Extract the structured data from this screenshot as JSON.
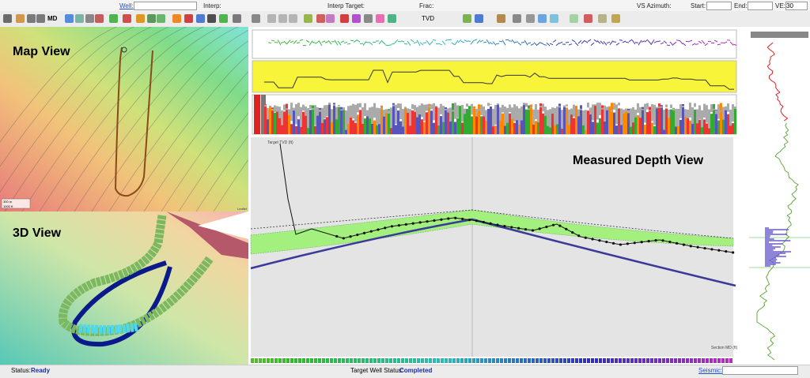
{
  "toolbar": {
    "well_label": "Well:",
    "interp_label": "Interp:",
    "interp_target_label": "Interp Target:",
    "frac_label": "Frac:",
    "vs_azimuth_label": "VS Azimuth:",
    "start_label": "Start:",
    "end_label": "End:",
    "ve_label": "VE:",
    "ve_value": "30",
    "md_button": "MD",
    "tvd_button": "TVD"
  },
  "panels": {
    "map_view": "Map View",
    "scale_m": "300 m",
    "scale_ft": "1000 ft",
    "attribution": "Leaflet",
    "view_3d": "3D View",
    "md_view": "Measured Depth View",
    "y_axis_label": "Target TVD (ft)",
    "x_axis_label": "Section MD (ft)"
  },
  "status": {
    "label": "Status:",
    "value": "Ready",
    "target_label": "Target Well Status:",
    "target_value": "Completed",
    "seismic_label": "Seismic:"
  }
}
